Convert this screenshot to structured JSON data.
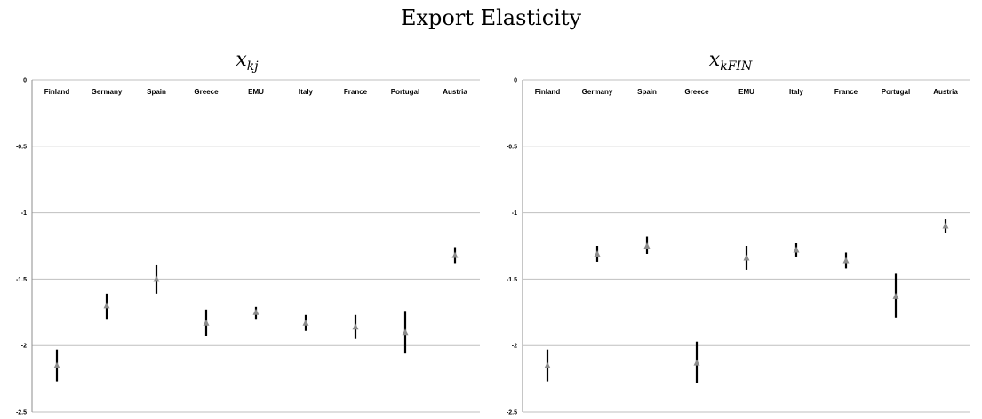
{
  "title": "Export Elasticity",
  "chart_data": [
    {
      "type": "scatter",
      "title_main": "x",
      "title_sub": "kj",
      "categories": [
        "Finland",
        "Germany",
        "Spain",
        "Greece",
        "EMU",
        "Italy",
        "France",
        "Portugal",
        "Austria"
      ],
      "series": [
        {
          "values": [
            -2.15,
            -1.7,
            -1.5,
            -1.83,
            -1.75,
            -1.83,
            -1.86,
            -1.9,
            -1.32
          ],
          "lower": [
            -2.27,
            -1.8,
            -1.61,
            -1.93,
            -1.8,
            -1.89,
            -1.95,
            -2.06,
            -1.38
          ],
          "upper": [
            -2.03,
            -1.61,
            -1.39,
            -1.73,
            -1.71,
            -1.77,
            -1.77,
            -1.74,
            -1.26
          ]
        }
      ],
      "ylim": [
        -2.5,
        0
      ],
      "yticks": [
        "0",
        "-0.5",
        "-1",
        "-1.5",
        "-2",
        "-2.5"
      ],
      "ytick_values": [
        0,
        -0.5,
        -1,
        -1.5,
        -2,
        -2.5
      ],
      "grid": true,
      "colors": {
        "marker": "#8c8c8c",
        "errorbar": "#000000",
        "grid": "#bfbfbf"
      }
    },
    {
      "type": "scatter",
      "title_main": "x",
      "title_sub": "kFIN",
      "categories": [
        "Finland",
        "Germany",
        "Spain",
        "Greece",
        "EMU",
        "Italy",
        "France",
        "Portugal",
        "Austria"
      ],
      "series": [
        {
          "values": [
            -2.15,
            -1.31,
            -1.25,
            -2.13,
            -1.34,
            -1.28,
            -1.36,
            -1.63,
            -1.1
          ],
          "lower": [
            -2.27,
            -1.37,
            -1.31,
            -2.28,
            -1.43,
            -1.33,
            -1.42,
            -1.79,
            -1.15
          ],
          "upper": [
            -2.03,
            -1.25,
            -1.18,
            -1.97,
            -1.25,
            -1.23,
            -1.3,
            -1.46,
            -1.05
          ]
        }
      ],
      "ylim": [
        -2.5,
        0
      ],
      "yticks": [
        "0",
        "-0.5",
        "-1",
        "-1.5",
        "-2",
        "-2.5"
      ],
      "ytick_values": [
        0,
        -0.5,
        -1,
        -1.5,
        -2,
        -2.5
      ],
      "grid": true,
      "colors": {
        "marker": "#8c8c8c",
        "errorbar": "#000000",
        "grid": "#bfbfbf"
      }
    }
  ]
}
